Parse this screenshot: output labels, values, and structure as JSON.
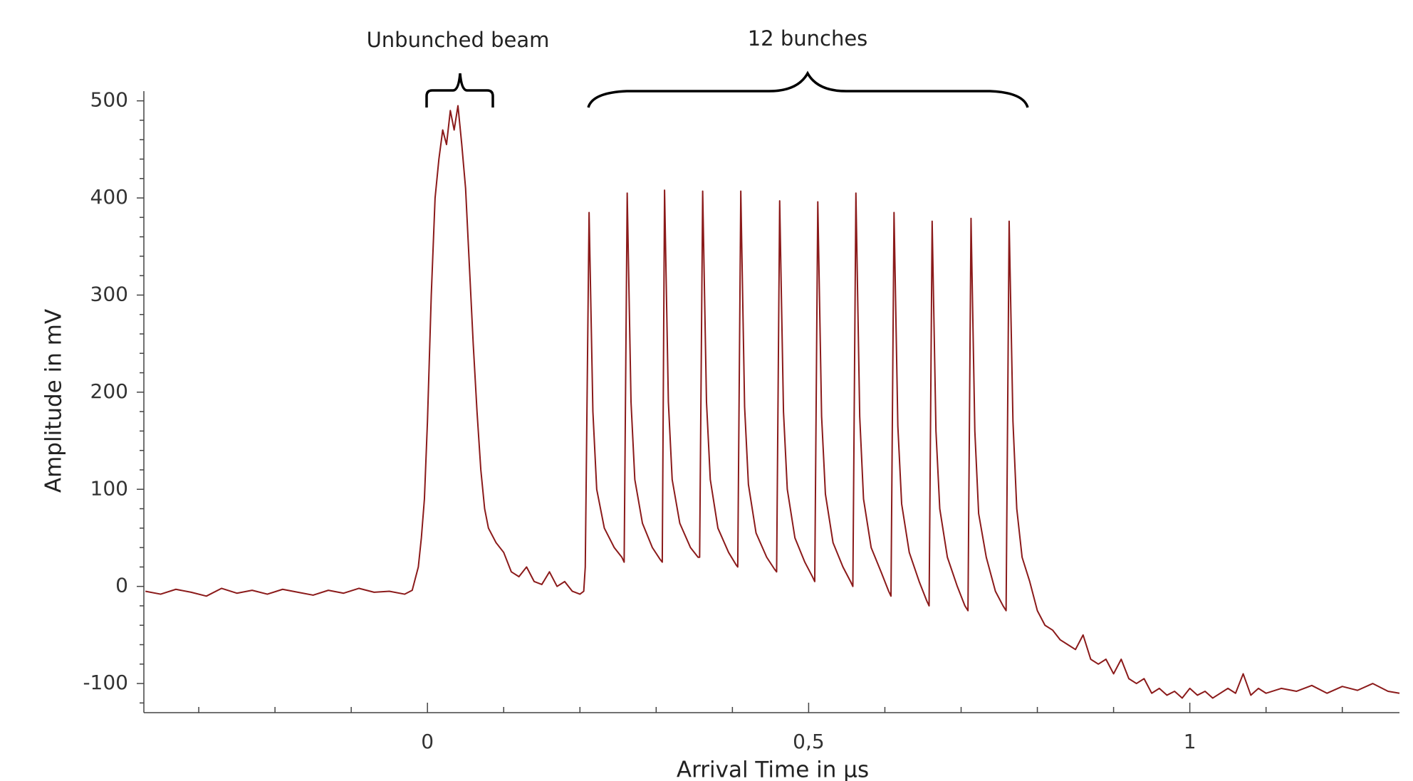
{
  "chart_data": {
    "type": "line",
    "annotations": [
      "Unbunched beam",
      "12 bunches"
    ],
    "xlabel": "Arrival Time in µs",
    "ylabel": "Amplitude in mV",
    "color": "#8b1a1a",
    "xlim": [
      -0.372,
      1.275
    ],
    "ylim": [
      -130,
      510
    ],
    "xticks": [
      0,
      {
        "value": 0.5,
        "label": "0,5"
      },
      1
    ],
    "yticks": [
      -100,
      0,
      100,
      200,
      300,
      400,
      500
    ],
    "xminorticks": [
      -0.3,
      -0.2,
      -0.1,
      0.1,
      0.2,
      0.3,
      0.4,
      0.6,
      0.7,
      0.8,
      0.9,
      1.1,
      1.2
    ],
    "yminorticks": [
      -120,
      -80,
      -60,
      -40,
      -20,
      20,
      40,
      60,
      80,
      120,
      140,
      160,
      180,
      220,
      240,
      260,
      280,
      320,
      340,
      360,
      380,
      420,
      440,
      460,
      480
    ],
    "x": [
      -0.37,
      -0.35,
      -0.33,
      -0.31,
      -0.29,
      -0.27,
      -0.25,
      -0.23,
      -0.21,
      -0.19,
      -0.17,
      -0.15,
      -0.13,
      -0.11,
      -0.09,
      -0.07,
      -0.05,
      -0.03,
      -0.02,
      -0.012,
      -0.008,
      -0.004,
      0,
      0.005,
      0.01,
      0.015,
      0.02,
      0.025,
      0.03,
      0.035,
      0.04,
      0.045,
      0.05,
      0.055,
      0.06,
      0.065,
      0.07,
      0.075,
      0.08,
      0.09,
      0.1,
      0.11,
      0.12,
      0.13,
      0.14,
      0.15,
      0.16,
      0.17,
      0.18,
      0.19,
      0.2,
      0.205,
      0.207,
      0.212,
      0.217,
      0.222,
      0.232,
      0.245,
      0.255,
      0.258,
      0.262,
      0.267,
      0.272,
      0.282,
      0.295,
      0.305,
      0.308,
      0.311,
      0.316,
      0.321,
      0.331,
      0.345,
      0.355,
      0.357,
      0.361,
      0.366,
      0.371,
      0.381,
      0.395,
      0.405,
      0.407,
      0.411,
      0.416,
      0.421,
      0.431,
      0.445,
      0.455,
      0.458,
      0.462,
      0.467,
      0.472,
      0.482,
      0.495,
      0.505,
      0.508,
      0.512,
      0.517,
      0.522,
      0.532,
      0.545,
      0.555,
      0.558,
      0.562,
      0.567,
      0.572,
      0.582,
      0.595,
      0.605,
      0.608,
      0.612,
      0.617,
      0.622,
      0.632,
      0.645,
      0.655,
      0.658,
      0.662,
      0.667,
      0.672,
      0.682,
      0.695,
      0.705,
      0.709,
      0.713,
      0.718,
      0.723,
      0.733,
      0.745,
      0.755,
      0.759,
      0.763,
      0.768,
      0.773,
      0.78,
      0.79,
      0.8,
      0.81,
      0.82,
      0.83,
      0.84,
      0.85,
      0.86,
      0.87,
      0.88,
      0.89,
      0.9,
      0.91,
      0.92,
      0.93,
      0.94,
      0.95,
      0.96,
      0.97,
      0.98,
      0.99,
      1.0,
      1.01,
      1.02,
      1.03,
      1.05,
      1.06,
      1.07,
      1.08,
      1.09,
      1.1,
      1.12,
      1.14,
      1.16,
      1.18,
      1.2,
      1.22,
      1.24,
      1.26,
      1.275
    ],
    "values": [
      -5,
      -8,
      -3,
      -6,
      -10,
      -2,
      -7,
      -4,
      -8,
      -3,
      -6,
      -9,
      -4,
      -7,
      -2,
      -6,
      -5,
      -8,
      -4,
      20,
      50,
      90,
      170,
      300,
      400,
      440,
      470,
      455,
      490,
      470,
      495,
      455,
      410,
      330,
      250,
      180,
      120,
      80,
      60,
      45,
      35,
      15,
      10,
      20,
      5,
      2,
      15,
      0,
      5,
      -5,
      -8,
      -5,
      20,
      385,
      180,
      100,
      60,
      40,
      30,
      25,
      405,
      190,
      110,
      65,
      40,
      28,
      25,
      408,
      190,
      110,
      65,
      40,
      30,
      30,
      407,
      190,
      110,
      60,
      35,
      22,
      20,
      407,
      185,
      105,
      55,
      30,
      18,
      15,
      397,
      180,
      100,
      50,
      25,
      10,
      5,
      396,
      175,
      95,
      45,
      20,
      5,
      0,
      405,
      175,
      90,
      40,
      15,
      -5,
      -10,
      385,
      165,
      85,
      35,
      5,
      -15,
      -20,
      376,
      160,
      80,
      30,
      0,
      -20,
      -25,
      379,
      160,
      75,
      30,
      -5,
      -20,
      -25,
      376,
      170,
      80,
      30,
      5,
      -25,
      -40,
      -45,
      -55,
      -60,
      -65,
      -50,
      -75,
      -80,
      -75,
      -90,
      -75,
      -95,
      -100,
      -95,
      -110,
      -105,
      -112,
      -108,
      -115,
      -105,
      -112,
      -108,
      -115,
      -105,
      -110,
      -90,
      -112,
      -105,
      -110,
      -105,
      -108,
      -102,
      -110,
      -103,
      -107,
      -100,
      -108,
      -110
    ]
  }
}
